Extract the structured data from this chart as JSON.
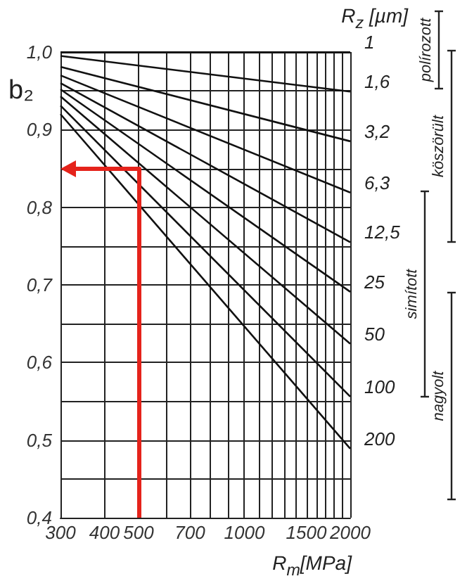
{
  "chart_data": {
    "type": "line",
    "ylabel": "b₂",
    "xlabel": "R$_{m}$[MPa]",
    "legend_title": "R$_{z}$ [µm]",
    "log": "x",
    "grid": true,
    "marker": "none",
    "line_style": "solid",
    "xlim": [
      300,
      2000
    ],
    "ylim": [
      0.4,
      1.0
    ],
    "xticks": [
      300,
      400,
      500,
      {
        "value": 600,
        "label": null
      },
      700,
      {
        "value": 800,
        "label": null
      },
      {
        "value": 900,
        "label": null
      },
      1000,
      {
        "value": 1100,
        "label": null
      },
      {
        "value": 1200,
        "label": null
      },
      {
        "value": 1300,
        "label": null
      },
      {
        "value": 1400,
        "label": null
      },
      1500,
      {
        "value": 1600,
        "label": null
      },
      {
        "value": 1700,
        "label": null
      },
      {
        "value": 1800,
        "label": null
      },
      {
        "value": 1900,
        "label": null
      },
      2000
    ],
    "yticks": [
      {
        "value": 0.4,
        "label": "0,4"
      },
      {
        "value": 0.45,
        "label": null
      },
      {
        "value": 0.5,
        "label": "0,5"
      },
      {
        "value": 0.55,
        "label": null
      },
      {
        "value": 0.6,
        "label": "0,6"
      },
      {
        "value": 0.65,
        "label": null
      },
      {
        "value": 0.7,
        "label": "0,7"
      },
      {
        "value": 0.75,
        "label": null
      },
      {
        "value": 0.8,
        "label": "0,8"
      },
      {
        "value": 0.85,
        "label": null
      },
      {
        "value": 0.9,
        "label": "0,9"
      },
      {
        "value": 0.95,
        "label": null
      },
      {
        "value": 1.0,
        "label": "1,0"
      }
    ],
    "x": [
      300,
      2000
    ],
    "series": [
      {
        "name": "1",
        "color": "#111111",
        "values": [
          1.0,
          1.0
        ]
      },
      {
        "name": "1,6",
        "color": "#111111",
        "values": [
          0.995,
          0.949
        ]
      },
      {
        "name": "3,2",
        "color": "#111111",
        "values": [
          0.981,
          0.885
        ]
      },
      {
        "name": "6,3",
        "color": "#111111",
        "values": [
          0.97,
          0.819
        ]
      },
      {
        "name": "12,5",
        "color": "#111111",
        "values": [
          0.96,
          0.755
        ]
      },
      {
        "name": "25",
        "color": "#111111",
        "values": [
          0.952,
          0.691
        ]
      },
      {
        "name": "50",
        "color": "#111111",
        "values": [
          0.943,
          0.624
        ]
      },
      {
        "name": "100",
        "color": "#111111",
        "values": [
          0.931,
          0.556
        ]
      },
      {
        "name": "200",
        "color": "#111111",
        "values": [
          0.92,
          0.489
        ]
      }
    ],
    "annotations": [
      "polírozott",
      "köszörült",
      "simított",
      "nagyolt"
    ]
  }
}
